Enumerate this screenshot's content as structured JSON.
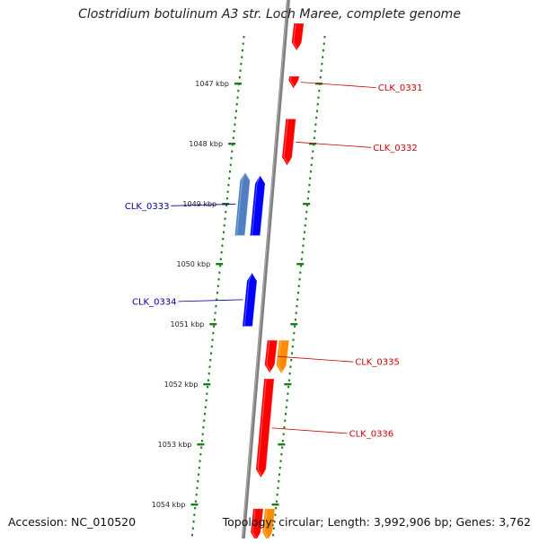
{
  "title": "Clostridium botulinum A3 str. Loch Maree, complete genome",
  "footer": {
    "accession": "Accession: NC_010520",
    "summary": "Topology: circular; Length: 3,992,906 bp; Genes: 3,762"
  },
  "colors": {
    "backbone": "#808080",
    "tick": "#1a7f1a",
    "forward_gene": "#ff0000",
    "reverse_gene": "#0000ff",
    "reverse_gene_light": "#4f7fc0",
    "orange_gene": "#ff8c00",
    "forward_label": "#cc0000",
    "reverse_label": "#000099"
  },
  "position_scale": [
    {
      "label": "1047 kbp",
      "kbp": 1047
    },
    {
      "label": "1048 kbp",
      "kbp": 1048
    },
    {
      "label": "1049 kbp",
      "kbp": 1049
    },
    {
      "label": "1050 kbp",
      "kbp": 1050
    },
    {
      "label": "1051 kbp",
      "kbp": 1051
    },
    {
      "label": "1052 kbp",
      "kbp": 1052
    },
    {
      "label": "1053 kbp",
      "kbp": 1053
    },
    {
      "label": "1054 kbp",
      "kbp": 1054
    }
  ],
  "genes": [
    {
      "locus": "CLK_0331",
      "strand": "+",
      "track": "forward",
      "color": "red",
      "start_kbp": 1046.88,
      "end_kbp": 1047.08,
      "labeled": true
    },
    {
      "locus": "CLK_0332",
      "strand": "+",
      "track": "forward",
      "color": "red",
      "start_kbp": 1047.59,
      "end_kbp": 1048.36,
      "labeled": true
    },
    {
      "locus": "CLK_0333",
      "strand": "-",
      "track": "reverse-outer",
      "color": "lightblue",
      "start_kbp": 1048.48,
      "end_kbp": 1049.53,
      "labeled": true
    },
    {
      "locus": "",
      "strand": "-",
      "track": "reverse",
      "color": "blue",
      "start_kbp": 1048.53,
      "end_kbp": 1049.53,
      "labeled": false
    },
    {
      "locus": "CLK_0334",
      "strand": "-",
      "track": "reverse",
      "color": "blue",
      "start_kbp": 1050.15,
      "end_kbp": 1051.04,
      "labeled": true
    },
    {
      "locus": "CLK_0335",
      "strand": "+",
      "track": "forward",
      "color": "red",
      "start_kbp": 1051.27,
      "end_kbp": 1051.81,
      "labeled": true
    },
    {
      "locus": "",
      "strand": "+",
      "track": "forward-outer",
      "color": "orange",
      "start_kbp": 1051.27,
      "end_kbp": 1051.82,
      "labeled": false
    },
    {
      "locus": "CLK_0336",
      "strand": "+",
      "track": "forward",
      "color": "red",
      "start_kbp": 1051.91,
      "end_kbp": 1053.55,
      "labeled": true
    },
    {
      "locus": "",
      "strand": "+",
      "track": "forward",
      "color": "red",
      "start_kbp": 1054.07,
      "end_kbp": 1054.6,
      "labeled": false
    },
    {
      "locus": "",
      "strand": "+",
      "track": "forward-outer",
      "color": "orange",
      "start_kbp": 1054.07,
      "end_kbp": 1054.6,
      "labeled": false
    },
    {
      "locus": "",
      "strand": "+",
      "track": "forward",
      "color": "red",
      "start_kbp": 1046.0,
      "end_kbp": 1046.45,
      "labeled": false
    }
  ]
}
